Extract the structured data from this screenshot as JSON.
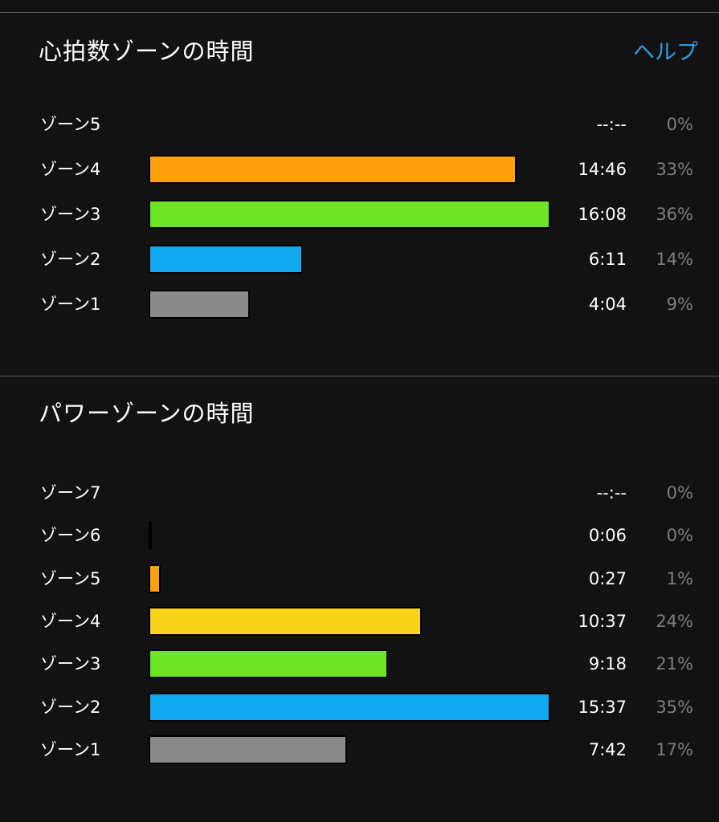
{
  "heart_rate_section": {
    "title": "心拍数ゾーンの時間",
    "help_label": "ヘルプ",
    "zones": [
      {
        "label": "ゾーン5",
        "time": "--:--",
        "percent": "0%",
        "fraction": 0,
        "color": "#a0a0a0"
      },
      {
        "label": "ゾーン4",
        "time": "14:46",
        "percent": "33%",
        "fraction": 0.916,
        "color": "#ffa00f"
      },
      {
        "label": "ゾーン3",
        "time": "16:08",
        "percent": "36%",
        "fraction": 1.0,
        "color": "#6de524"
      },
      {
        "label": "ゾーン2",
        "time": "6:11",
        "percent": "14%",
        "fraction": 0.383,
        "color": "#10a8ef"
      },
      {
        "label": "ゾーン1",
        "time": "4:04",
        "percent": "9%",
        "fraction": 0.252,
        "color": "#8a8a8a"
      }
    ]
  },
  "power_section": {
    "title": "パワーゾーンの時間",
    "zones": [
      {
        "label": "ゾーン7",
        "time": "--:--",
        "percent": "0%",
        "fraction": 0,
        "color": "#a0a0a0"
      },
      {
        "label": "ゾーン6",
        "time": "0:06",
        "percent": "0%",
        "fraction": 0.0064,
        "color": "#222222"
      },
      {
        "label": "ゾーン5",
        "time": "0:27",
        "percent": "1%",
        "fraction": 0.029,
        "color": "#ffa00f"
      },
      {
        "label": "ゾーン4",
        "time": "10:37",
        "percent": "24%",
        "fraction": 0.68,
        "color": "#fad31b"
      },
      {
        "label": "ゾーン3",
        "time": "9:18",
        "percent": "21%",
        "fraction": 0.595,
        "color": "#6de524"
      },
      {
        "label": "ゾーン2",
        "time": "15:37",
        "percent": "35%",
        "fraction": 1.0,
        "color": "#10a8ef"
      },
      {
        "label": "ゾーン1",
        "time": "7:42",
        "percent": "17%",
        "fraction": 0.493,
        "color": "#8a8a8a"
      }
    ]
  }
}
